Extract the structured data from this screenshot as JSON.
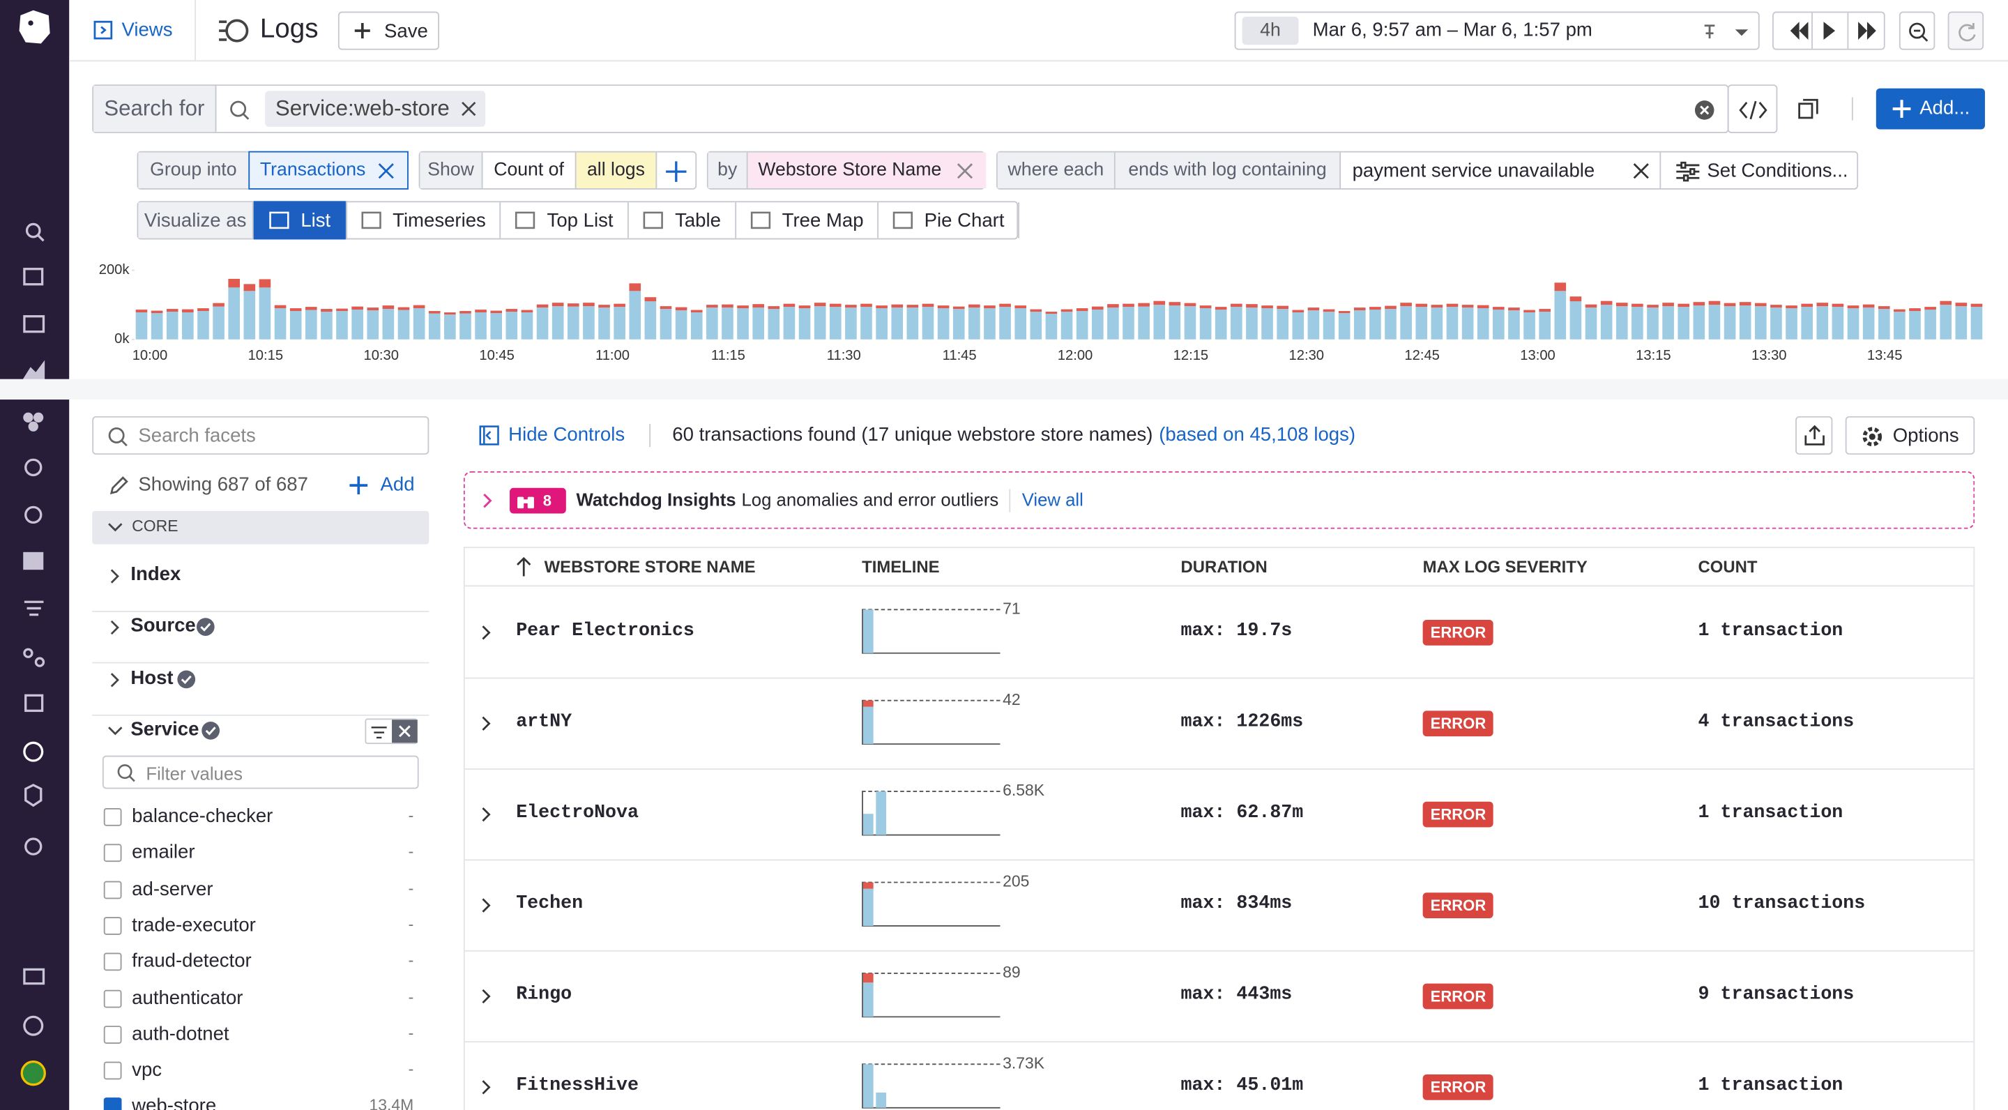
{
  "nav": {
    "views": "Views",
    "title": "Logs",
    "save": "Save"
  },
  "time": {
    "preset": "4h",
    "range": "Mar 6, 9:57 am – Mar 6, 1:57 pm"
  },
  "search": {
    "label": "Search for",
    "query": "Service:web-store",
    "add": "Add..."
  },
  "query": {
    "group_into": "Group into",
    "group_value": "Transactions",
    "show": "Show",
    "count_of": "Count of",
    "all_logs": "all logs",
    "by": "by",
    "by_value": "Webstore Store Name",
    "where_each": "where each",
    "ends_with": "ends with log containing",
    "condition": "payment service unavailable",
    "set_conditions": "Set Conditions..."
  },
  "visualize": {
    "label": "Visualize as",
    "options": [
      "List",
      "Timeseries",
      "Top List",
      "Table",
      "Tree Map",
      "Pie Chart"
    ],
    "selected": 0
  },
  "chart_data": {
    "type": "bar",
    "stacked": true,
    "ylim": [
      0,
      200000
    ],
    "yticks": [
      {
        "value": 0,
        "label": "0k"
      },
      {
        "value": 200000,
        "label": "200k"
      }
    ],
    "xticks": [
      "10:00",
      "10:15",
      "10:30",
      "10:45",
      "11:00",
      "11:15",
      "11:30",
      "11:45",
      "12:00",
      "12:15",
      "12:30",
      "12:45",
      "13:00",
      "13:15",
      "13:30",
      "13:45"
    ],
    "series": [
      {
        "color": "#9ccbe3",
        "values": [
          78000,
          76000,
          80000,
          78000,
          82000,
          95000,
          150000,
          140000,
          150000,
          90000,
          82000,
          85000,
          80000,
          82000,
          86000,
          84000,
          88000,
          85000,
          90000,
          75000,
          72000,
          75000,
          78000,
          76000,
          80000,
          78000,
          92000,
          96000,
          95000,
          96000,
          92000,
          94000,
          140000,
          110000,
          88000,
          84000,
          78000,
          92000,
          92000,
          90000,
          92000,
          88000,
          94000,
          90000,
          96000,
          94000,
          92000,
          94000,
          90000,
          92000,
          92000,
          94000,
          90000,
          88000,
          92000,
          90000,
          94000,
          90000,
          80000,
          74000,
          80000,
          82000,
          86000,
          92000,
          94000,
          95000,
          100000,
          98000,
          96000,
          90000,
          86000,
          94000,
          92000,
          90000,
          88000,
          78000,
          84000,
          80000,
          76000,
          84000,
          86000,
          88000,
          96000,
          94000,
          92000,
          94000,
          92000,
          90000,
          86000,
          84000,
          78000,
          80000,
          140000,
          110000,
          92000,
          100000,
          96000,
          94000,
          92000,
          96000,
          94000,
          98000,
          100000,
          96000,
          98000,
          96000,
          92000,
          90000,
          94000,
          96000,
          94000,
          90000,
          92000,
          88000,
          80000,
          82000,
          86000,
          100000,
          96000,
          94000
        ]
      },
      {
        "color": "#e05a4f",
        "values": [
          8000,
          7000,
          8000,
          9000,
          8000,
          10000,
          25000,
          20000,
          24000,
          9000,
          8000,
          9000,
          8000,
          7000,
          9000,
          8000,
          10000,
          8000,
          9000,
          7000,
          6000,
          7000,
          8000,
          7000,
          8000,
          7000,
          9000,
          10000,
          9000,
          10000,
          8000,
          9000,
          22000,
          12000,
          8000,
          9000,
          7000,
          8000,
          9000,
          8000,
          10000,
          8000,
          9000,
          8000,
          10000,
          9000,
          8000,
          9000,
          8000,
          9000,
          8000,
          9000,
          8000,
          7000,
          9000,
          8000,
          9000,
          8000,
          7000,
          6000,
          7000,
          8000,
          9000,
          10000,
          9000,
          10000,
          11000,
          10000,
          9000,
          8000,
          8000,
          9000,
          10000,
          8000,
          9000,
          7000,
          8000,
          7000,
          6000,
          8000,
          8000,
          9000,
          10000,
          9000,
          8000,
          9000,
          8000,
          9000,
          8000,
          8000,
          7000,
          8000,
          24000,
          14000,
          9000,
          11000,
          10000,
          9000,
          8000,
          10000,
          9000,
          10000,
          11000,
          9000,
          10000,
          9000,
          8000,
          8000,
          9000,
          10000,
          9000,
          8000,
          9000,
          8000,
          7000,
          8000,
          8000,
          11000,
          10000,
          9000
        ]
      }
    ]
  },
  "facets": {
    "search_placeholder": "Search facets",
    "showing": "Showing 687 of 687",
    "add": "Add",
    "core": "CORE",
    "groups": [
      "Index",
      "Source",
      "Host",
      "Service"
    ],
    "filter_placeholder": "Filter values",
    "values": [
      {
        "name": "balance-checker",
        "count": "-"
      },
      {
        "name": "emailer",
        "count": "-"
      },
      {
        "name": "ad-server",
        "count": "-"
      },
      {
        "name": "trade-executor",
        "count": "-"
      },
      {
        "name": "fraud-detector",
        "count": "-"
      },
      {
        "name": "authenticator",
        "count": "-"
      },
      {
        "name": "auth-dotnet",
        "count": "-"
      },
      {
        "name": "vpc",
        "count": "-"
      },
      {
        "name": "web-store",
        "count": "13.4M",
        "checked": true
      }
    ]
  },
  "results": {
    "hide_controls": "Hide Controls",
    "summary": "60 transactions found (17 unique webstore store names)",
    "based_on": "(based on 45,108 logs)",
    "options": "Options"
  },
  "watchdog": {
    "count": 8,
    "title": "Watchdog Insights",
    "subtitle": "Log anomalies and error outliers",
    "view_all": "View all"
  },
  "table": {
    "columns": [
      "WEBSTORE STORE NAME",
      "TIMELINE",
      "DURATION",
      "MAX LOG SEVERITY",
      "COUNT"
    ],
    "rows": [
      {
        "name": "Pear Electronics",
        "timeline": [
          71
        ],
        "timeline_errors": [
          0
        ],
        "timeline_max": 71,
        "duration": "max: 19.7s",
        "severity": "ERROR",
        "count": "1 transaction"
      },
      {
        "name": "artNY",
        "timeline": [
          36
        ],
        "timeline_errors": [
          6
        ],
        "timeline_max": 42,
        "duration": "max: 1226ms",
        "severity": "ERROR",
        "count": "4 transactions"
      },
      {
        "name": "ElectroNova",
        "timeline": [
          3200,
          6580
        ],
        "timeline_errors": [
          0,
          0
        ],
        "timeline_max": {
          "value": 6580,
          "label": "6.58K"
        },
        "duration": "max: 62.87m",
        "severity": "ERROR",
        "count": "1 transaction"
      },
      {
        "name": "Techen",
        "timeline": [
          175
        ],
        "timeline_errors": [
          30
        ],
        "timeline_max": 205,
        "duration": "max: 834ms",
        "severity": "ERROR",
        "count": "10 transactions"
      },
      {
        "name": "Ringo",
        "timeline": [
          70
        ],
        "timeline_errors": [
          19
        ],
        "timeline_max": 89,
        "duration": "max: 443ms",
        "severity": "ERROR",
        "count": "9 transactions"
      },
      {
        "name": "FitnessHive",
        "timeline": [
          3730,
          1300
        ],
        "timeline_errors": [
          0,
          0
        ],
        "timeline_max": {
          "value": 3730,
          "label": "3.73K"
        },
        "duration": "max: 45.01m",
        "severity": "ERROR",
        "count": "1 transaction"
      }
    ]
  }
}
